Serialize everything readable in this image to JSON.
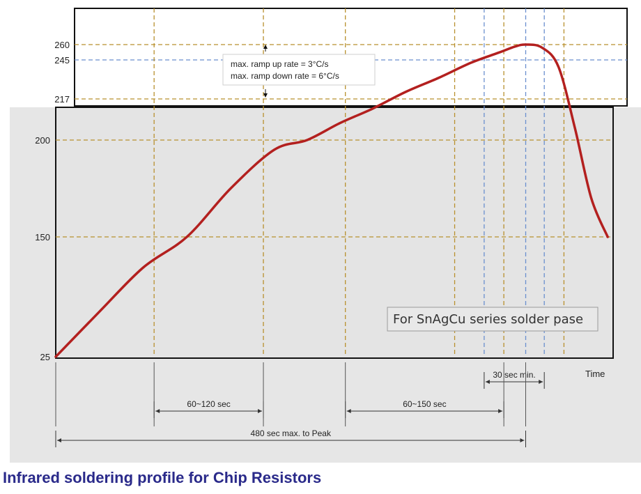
{
  "chart_data": {
    "type": "line",
    "title": "",
    "xlabel": "Time",
    "ylabel": "",
    "y_ticks": [
      25,
      150,
      200,
      217,
      245,
      260
    ],
    "y_tick_labels": [
      "25",
      "150",
      "200",
      "217",
      "245",
      "260"
    ],
    "x_range": [
      0,
      510
    ],
    "x_peak_unit": 430,
    "series": [
      {
        "name": "",
        "color": "#b3201f",
        "x": [
          0,
          40,
          80,
          120,
          160,
          200,
          230,
          260,
          290,
          320,
          350,
          380,
          405,
          420,
          430,
          445,
          460,
          475,
          490,
          505
        ],
        "y": [
          25,
          72,
          118,
          150,
          175,
          195,
          200,
          207,
          213,
          222,
          232,
          243,
          252,
          258,
          260,
          257,
          240,
          205,
          170,
          150
        ]
      }
    ],
    "vertical_guides": [
      {
        "x": 90,
        "color": "#b8902e"
      },
      {
        "x": 190,
        "color": "#b8902e"
      },
      {
        "x": 265,
        "color": "#b8902e"
      },
      {
        "x": 365,
        "color": "#b8902e"
      },
      {
        "x": 392,
        "color": "#6a8fcf"
      },
      {
        "x": 410,
        "color": "#b8902e"
      },
      {
        "x": 430,
        "color": "#6a8fcf"
      },
      {
        "x": 447,
        "color": "#6a8fcf"
      },
      {
        "x": 465,
        "color": "#b8902e"
      }
    ],
    "annotations": [
      {
        "text": "max. ramp up rate = 3°C/s"
      },
      {
        "text": "max. ramp down rate = 6°C/s"
      },
      {
        "text": "For SnAgCu series solder pase"
      }
    ],
    "time_spans": [
      {
        "label": "30 sec min.",
        "from": 392,
        "to": 447
      },
      {
        "label": "60~120 sec",
        "from": 90,
        "to": 190
      },
      {
        "label": "60~150 sec",
        "from": 265,
        "to": 410
      },
      {
        "label": "480 sec max. to Peak",
        "from": 0,
        "to": 430
      }
    ]
  },
  "footer": {
    "title": "Infrared soldering profile for Chip Resistors"
  }
}
